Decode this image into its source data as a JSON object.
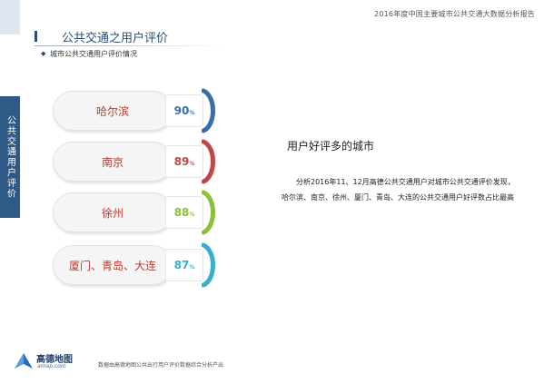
{
  "header": {
    "report_title": "2016年度中国主要城市公共交通大数据分析报告"
  },
  "page": {
    "title": "公共交通之用户评价",
    "subtitle": "城市公共交通用户评价情况",
    "subtitle_marker": "◆"
  },
  "side_tab": {
    "label": "公共交通用户评价"
  },
  "cities": [
    {
      "name": "哈尔滨",
      "value": "90",
      "unit": "%",
      "color": "#3a6ea8"
    },
    {
      "name": "南京",
      "value": "89",
      "unit": "%",
      "color": "#c0464a"
    },
    {
      "name": "徐州",
      "value": "88",
      "unit": "%",
      "color": "#8fbf3a"
    },
    {
      "name": "厦门、青岛、大连",
      "value": "87",
      "unit": "%",
      "color": "#3aaecb"
    }
  ],
  "analysis": {
    "heading": "用户好评多的城市",
    "body": "分析2016年11、12月高德公共交通用户对城市公共交通评价发现，哈尔滨、南京、徐州、厦门、青岛、大连的公共交通用户好评数占比最高"
  },
  "footer": {
    "logo_text": "高德地图",
    "logo_url": "amap.com",
    "note": "数据由高德地图公共出行用户评价数据综合分析产出"
  },
  "colors": {
    "brand": "#2c4d73",
    "side_tab": "#2f5a86",
    "city_text": "#c0392b"
  }
}
